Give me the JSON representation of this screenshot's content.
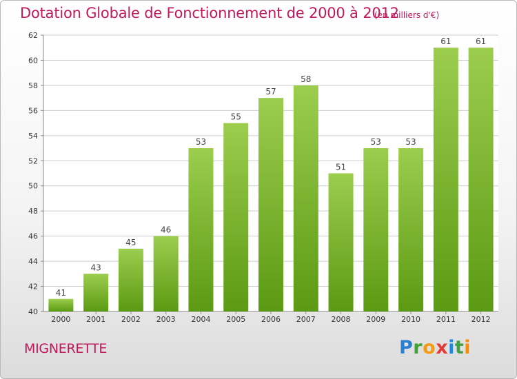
{
  "title": "Dotation Globale de Fonctionnement de 2000 à 2012",
  "subtitle": "(en milliers d'€)",
  "commune": "MIGNERETTE",
  "logo": "Proxiti",
  "colors": {
    "title": "#c2185b",
    "bar_top": "#9ccd4e",
    "bar_bottom": "#5b9a12",
    "grid": "#cccccc"
  },
  "chart_data": {
    "type": "bar",
    "categories": [
      "2000",
      "2001",
      "2002",
      "2003",
      "2004",
      "2005",
      "2006",
      "2007",
      "2008",
      "2009",
      "2010",
      "2011",
      "2012"
    ],
    "values": [
      41,
      43,
      45,
      46,
      53,
      55,
      57,
      58,
      51,
      53,
      53,
      61,
      61
    ],
    "ylim": [
      40,
      62
    ],
    "yticks": [
      40,
      42,
      44,
      46,
      48,
      50,
      52,
      54,
      56,
      58,
      60,
      62
    ],
    "grid": true,
    "xlabel": "",
    "ylabel": ""
  }
}
